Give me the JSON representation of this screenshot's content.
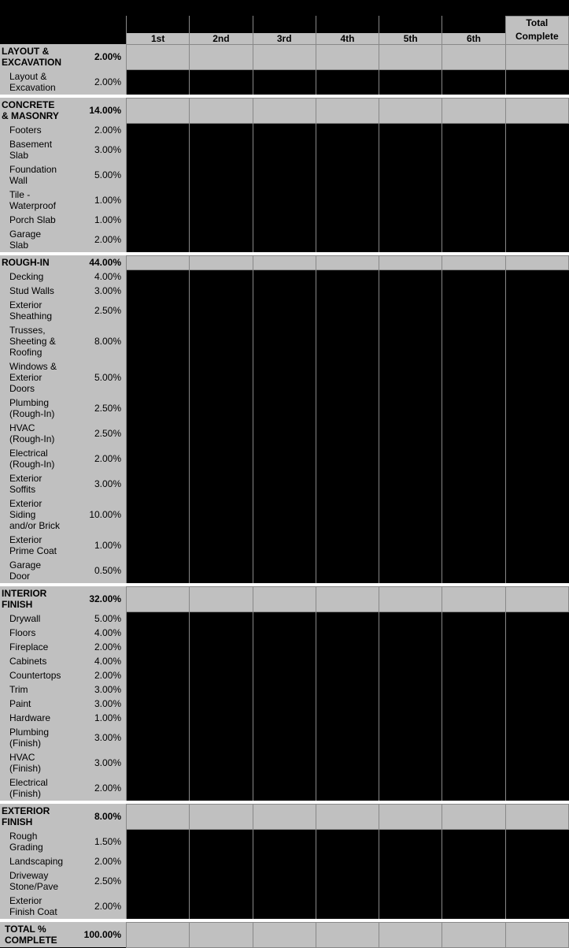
{
  "title": "",
  "columns": {
    "periods": [
      "1st",
      "2nd",
      "3rd",
      "4th",
      "5th",
      "6th"
    ],
    "total": "Total Complete"
  },
  "sections": [
    {
      "name": "LAYOUT & EXCAVATION",
      "pct": "2.00%",
      "items": [
        {
          "name": "Layout & Excavation",
          "pct": "2.00%"
        }
      ]
    },
    {
      "name": "CONCRETE & MASONRY",
      "pct": "14.00%",
      "items": [
        {
          "name": "Footers",
          "pct": "2.00%"
        },
        {
          "name": "Basement Slab",
          "pct": "3.00%"
        },
        {
          "name": "Foundation Wall",
          "pct": "5.00%"
        },
        {
          "name": "Tile - Waterproof",
          "pct": "1.00%"
        },
        {
          "name": "Porch Slab",
          "pct": "1.00%"
        },
        {
          "name": "Garage Slab",
          "pct": "2.00%"
        }
      ]
    },
    {
      "name": "ROUGH-IN",
      "pct": "44.00%",
      "items": [
        {
          "name": "Decking",
          "pct": "4.00%"
        },
        {
          "name": "Stud Walls",
          "pct": "3.00%"
        },
        {
          "name": "Exterior Sheathing",
          "pct": "2.50%"
        },
        {
          "name": "Trusses, Sheeting & Roofing",
          "pct": "8.00%"
        },
        {
          "name": "Windows & Exterior Doors",
          "pct": "5.00%"
        },
        {
          "name": "Plumbing (Rough-In)",
          "pct": "2.50%"
        },
        {
          "name": "HVAC (Rough-In)",
          "pct": "2.50%"
        },
        {
          "name": "Electrical (Rough-In)",
          "pct": "2.00%"
        },
        {
          "name": "Exterior Soffits",
          "pct": "3.00%"
        },
        {
          "name": "Exterior Siding and/or Brick",
          "pct": "10.00%"
        },
        {
          "name": "Exterior Prime Coat",
          "pct": "1.00%"
        },
        {
          "name": "Garage Door",
          "pct": "0.50%"
        }
      ]
    },
    {
      "name": "INTERIOR FINISH",
      "pct": "32.00%",
      "items": [
        {
          "name": "Drywall",
          "pct": "5.00%"
        },
        {
          "name": "Floors",
          "pct": "4.00%"
        },
        {
          "name": "Fireplace",
          "pct": "2.00%"
        },
        {
          "name": "Cabinets",
          "pct": "4.00%"
        },
        {
          "name": "Countertops",
          "pct": "2.00%"
        },
        {
          "name": "Trim",
          "pct": "3.00%"
        },
        {
          "name": "Paint",
          "pct": "3.00%"
        },
        {
          "name": "Hardware",
          "pct": "1.00%"
        },
        {
          "name": "Plumbing (Finish)",
          "pct": "3.00%"
        },
        {
          "name": "HVAC (Finish)",
          "pct": "3.00%"
        },
        {
          "name": "Electrical (Finish)",
          "pct": "2.00%"
        }
      ]
    },
    {
      "name": "EXTERIOR FINISH",
      "pct": "8.00%",
      "items": [
        {
          "name": "Rough Grading",
          "pct": "1.50%"
        },
        {
          "name": "Landscaping",
          "pct": "2.00%"
        },
        {
          "name": "Driveway Stone/Pave",
          "pct": "2.50%"
        },
        {
          "name": "Exterior Finish Coat",
          "pct": "2.00%"
        }
      ]
    }
  ],
  "grand": {
    "label": "TOTAL % COMPLETE",
    "pct": "100.00%"
  },
  "style": {
    "bg_black": "#000000",
    "bg_grey": "#c0c0c0",
    "border_grey": "#888888",
    "font_size": 12
  }
}
